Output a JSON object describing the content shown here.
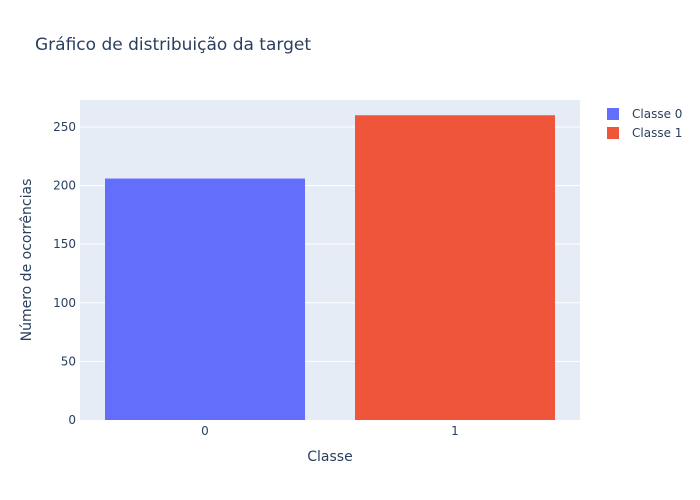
{
  "chart_data": {
    "type": "bar",
    "title": "Gráfico de distribuição da target",
    "xlabel": "Classe",
    "ylabel": "Número de ocorrências",
    "categories": [
      "0",
      "1"
    ],
    "series": [
      {
        "name": "Classe 0",
        "category": "0",
        "value": 206,
        "color": "#636efa"
      },
      {
        "name": "Classe 1",
        "category": "1",
        "value": 260,
        "color": "#ef553b"
      }
    ],
    "ylim": [
      0,
      273
    ],
    "yticks": [
      0,
      50,
      100,
      150,
      200,
      250
    ],
    "grid": true,
    "legend_position": "top-right",
    "plot_background": "#e5ecf6"
  }
}
